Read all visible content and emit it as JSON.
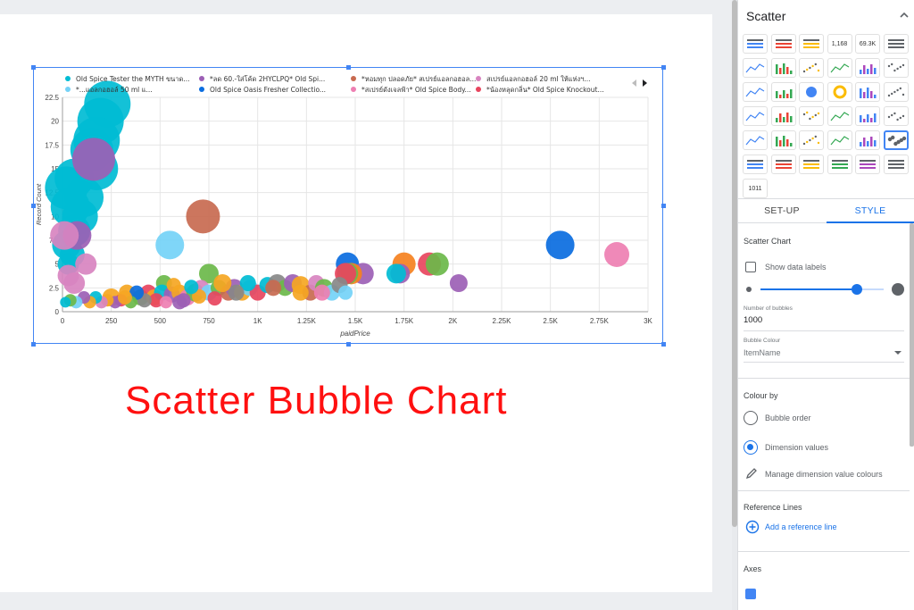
{
  "headline": "Scatter Bubble Chart",
  "panel": {
    "title": "Scatter",
    "chart_types": [
      {
        "icon": "table-icon"
      },
      {
        "icon": "table-bars-icon"
      },
      {
        "icon": "table-heatmap-icon"
      },
      {
        "icon": "scorecard-icon",
        "label": "1,168"
      },
      {
        "icon": "scorecard-compact-icon",
        "label": "69.3K"
      },
      {
        "icon": "time-series-icon"
      },
      {
        "icon": "sparkline-icon"
      },
      {
        "icon": "smoothed-line-icon"
      },
      {
        "icon": "column-chart-icon"
      },
      {
        "icon": "stacked-column-icon"
      },
      {
        "icon": "100-stacked-column-icon"
      },
      {
        "icon": "bar-chart-icon"
      },
      {
        "icon": "stacked-bar-icon"
      },
      {
        "icon": "100-stacked-bar-icon"
      },
      {
        "icon": "pie-chart-icon"
      },
      {
        "icon": "donut-chart-icon"
      },
      {
        "icon": "geo-map-icon"
      },
      {
        "icon": "google-maps-icon"
      },
      {
        "icon": "filled-map-icon"
      },
      {
        "icon": "line-map-icon"
      },
      {
        "icon": "heat-map-icon"
      },
      {
        "icon": "combo-column-icon"
      },
      {
        "icon": "combo-stacked-icon"
      },
      {
        "icon": "line-chart-icon"
      },
      {
        "icon": "smooth-line-chart-icon"
      },
      {
        "icon": "area-chart-icon"
      },
      {
        "icon": "stacked-area-icon"
      },
      {
        "icon": "100-area-icon"
      },
      {
        "icon": "scatter-chart-icon"
      },
      {
        "icon": "bubble-chart-icon",
        "selected": true
      },
      {
        "icon": "pivot-table-icon"
      },
      {
        "icon": "pivot-bars-icon"
      },
      {
        "icon": "pivot-heatmap-icon"
      },
      {
        "icon": "bullet-chart-icon"
      },
      {
        "icon": "treemap-icon"
      },
      {
        "icon": "gauge-icon"
      },
      {
        "icon": "gauge-value-icon",
        "label": "1011"
      }
    ],
    "tabs": [
      "SET-UP",
      "STYLE"
    ],
    "active_tab": "STYLE",
    "style": {
      "section_title": "Scatter Chart",
      "show_labels": "Show data labels",
      "num_bubbles_label": "Number of bubbles",
      "num_bubbles_value": "1000",
      "bubble_colour_label": "Bubble Colour",
      "bubble_colour_value": "ItemName",
      "slider_fraction": 0.78,
      "colour_by_title": "Colour by",
      "option_bubble_order": "Bubble order",
      "option_dimension": "Dimension values",
      "selected_option": "Dimension values",
      "manage_colours": "Manage dimension value colours",
      "reference_lines_title": "Reference Lines",
      "add_reference_line": "Add a reference line",
      "axes_title": "Axes"
    }
  },
  "chart_data": {
    "type": "scatter",
    "xlabel": "paidPrice",
    "ylabel": "Record Count",
    "xlim": [
      0,
      3000
    ],
    "ylim": [
      0,
      22.5
    ],
    "x_ticks": [
      "0",
      "250",
      "500",
      "750",
      "1K",
      "1.25K",
      "1.5K",
      "1.75K",
      "2K",
      "2.25K",
      "2.5K",
      "2.75K",
      "3K"
    ],
    "y_ticks": [
      "0",
      "2.5",
      "5",
      "7.5",
      "10",
      "12.5",
      "15",
      "17.5",
      "20",
      "22.5"
    ],
    "grid": true,
    "legend_position": "top",
    "legend": [
      {
        "name": "Old Spice Tester the MYTH ขนาด...",
        "color": "#00bcd4"
      },
      {
        "name": "*ลด 60.-ใส่โค้ด 2HYCLPQ* Old Spi...",
        "color": "#9c5fb5"
      },
      {
        "name": "*หอมทุก ปลอดภัย* สเปรย์แอลกอฮอล...",
        "color": "#c86a50"
      },
      {
        "name": "สเปรย์แอลกอฮอล์ 20 ml ให้แห่งฯ...",
        "color": "#d884c0"
      },
      {
        "name": "*...แอลกอฮอล์ 50 ml แ...",
        "color": "#74d2f7"
      },
      {
        "name": "Old Spice Oasis Fresher Collectio...",
        "color": "#0a6de0"
      },
      {
        "name": "*สเปรย์ดังเจลฟ้า* Old Spice Body...",
        "color": "#ee7fb2"
      },
      {
        "name": "*น้องหลุดกลิ่น* Old Spice Knockout...",
        "color": "#e8455e"
      }
    ],
    "points": [
      {
        "x": 230,
        "y": 21.8,
        "r": 26,
        "c": "#00bcd4"
      },
      {
        "x": 195,
        "y": 20,
        "r": 26,
        "c": "#00bcd4"
      },
      {
        "x": 175,
        "y": 18,
        "r": 26,
        "c": "#00bcd4"
      },
      {
        "x": 150,
        "y": 17,
        "r": 24,
        "c": "#00bcd4"
      },
      {
        "x": 175,
        "y": 15,
        "r": 24,
        "c": "#00bcd4"
      },
      {
        "x": 60,
        "y": 14,
        "r": 22,
        "c": "#00bcd4"
      },
      {
        "x": 20,
        "y": 13,
        "r": 24,
        "c": "#00bcd4"
      },
      {
        "x": 110,
        "y": 12,
        "r": 22,
        "c": "#00bcd4"
      },
      {
        "x": 40,
        "y": 11,
        "r": 22,
        "c": "#00bcd4"
      },
      {
        "x": 90,
        "y": 10,
        "r": 20,
        "c": "#00bcd4"
      },
      {
        "x": 60,
        "y": 8.5,
        "r": 18,
        "c": "#00bcd4"
      },
      {
        "x": 20,
        "y": 7,
        "r": 16,
        "c": "#00bcd4"
      },
      {
        "x": 50,
        "y": 6,
        "r": 14,
        "c": "#00bcd4"
      },
      {
        "x": 30,
        "y": 5,
        "r": 12,
        "c": "#00bcd4"
      },
      {
        "x": 160,
        "y": 16,
        "r": 24,
        "c": "#9c5fb5"
      },
      {
        "x": 75,
        "y": 8,
        "r": 16,
        "c": "#9c5fb5"
      },
      {
        "x": 10,
        "y": 8,
        "r": 16,
        "c": "#d884c0"
      },
      {
        "x": 120,
        "y": 5,
        "r": 12,
        "c": "#d884c0"
      },
      {
        "x": 30,
        "y": 3.8,
        "r": 12,
        "c": "#d884c0"
      },
      {
        "x": 60,
        "y": 3,
        "r": 12,
        "c": "#d884c0"
      },
      {
        "x": 720,
        "y": 10,
        "r": 19,
        "c": "#c86a50"
      },
      {
        "x": 550,
        "y": 7,
        "r": 16,
        "c": "#74d2f7"
      },
      {
        "x": 2550,
        "y": 7,
        "r": 16,
        "c": "#0a6de0"
      },
      {
        "x": 2840,
        "y": 6,
        "r": 14,
        "c": "#ee7fb2"
      },
      {
        "x": 1460,
        "y": 5,
        "r": 13,
        "c": "#0a6de0"
      },
      {
        "x": 1750,
        "y": 5,
        "r": 13,
        "c": "#f5811f"
      },
      {
        "x": 1880,
        "y": 5,
        "r": 13,
        "c": "#e8455e"
      },
      {
        "x": 1920,
        "y": 5,
        "r": 13,
        "c": "#6bb84a"
      },
      {
        "x": 1730,
        "y": 4,
        "r": 11,
        "c": "#9c5fb5"
      },
      {
        "x": 1710,
        "y": 4,
        "r": 11,
        "c": "#00bcd4"
      },
      {
        "x": 1540,
        "y": 4,
        "r": 12,
        "c": "#9c5fb5"
      },
      {
        "x": 1480,
        "y": 4,
        "r": 12,
        "c": "#f5811f"
      },
      {
        "x": 1460,
        "y": 4,
        "r": 12,
        "c": "#6bb84a"
      },
      {
        "x": 1450,
        "y": 4,
        "r": 12,
        "c": "#e8455e"
      },
      {
        "x": 2030,
        "y": 3,
        "r": 10,
        "c": "#9c5fb5"
      },
      {
        "x": 750,
        "y": 4,
        "r": 11,
        "c": "#6bb84a"
      },
      {
        "x": 520,
        "y": 3,
        "r": 9,
        "c": "#6bb84a"
      },
      {
        "x": 250,
        "y": 1.5,
        "r": 10,
        "c": "#f5a623"
      },
      {
        "x": 330,
        "y": 2,
        "r": 9,
        "c": "#f5a623"
      },
      {
        "x": 400,
        "y": 1.5,
        "r": 9,
        "c": "#6bb84a"
      },
      {
        "x": 440,
        "y": 2,
        "r": 9,
        "c": "#e8455e"
      },
      {
        "x": 470,
        "y": 1.5,
        "r": 9,
        "c": "#f5a623"
      },
      {
        "x": 510,
        "y": 2,
        "r": 9,
        "c": "#00bcd4"
      },
      {
        "x": 560,
        "y": 1.8,
        "r": 9,
        "c": "#9c5fb5"
      },
      {
        "x": 600,
        "y": 2,
        "r": 9,
        "c": "#f5a623"
      },
      {
        "x": 640,
        "y": 1.5,
        "r": 9,
        "c": "#ee7fb2"
      },
      {
        "x": 680,
        "y": 2,
        "r": 10,
        "c": "#6bb84a"
      },
      {
        "x": 710,
        "y": 2.5,
        "r": 9,
        "c": "#d884c0"
      },
      {
        "x": 750,
        "y": 2,
        "r": 9,
        "c": "#74d2f7"
      },
      {
        "x": 800,
        "y": 2.5,
        "r": 9,
        "c": "#6bb84a"
      },
      {
        "x": 850,
        "y": 2,
        "r": 9,
        "c": "#c86a50"
      },
      {
        "x": 880,
        "y": 2.5,
        "r": 10,
        "c": "#9c5fb5"
      },
      {
        "x": 920,
        "y": 2,
        "r": 9,
        "c": "#f5a623"
      },
      {
        "x": 960,
        "y": 2.5,
        "r": 9,
        "c": "#74d2f7"
      },
      {
        "x": 1000,
        "y": 2,
        "r": 9,
        "c": "#e8455e"
      },
      {
        "x": 1050,
        "y": 2.8,
        "r": 9,
        "c": "#00bcd4"
      },
      {
        "x": 1100,
        "y": 3,
        "r": 10,
        "c": "#888888"
      },
      {
        "x": 1140,
        "y": 2.5,
        "r": 9,
        "c": "#6bb84a"
      },
      {
        "x": 1180,
        "y": 3,
        "r": 10,
        "c": "#9c5fb5"
      },
      {
        "x": 1220,
        "y": 2.8,
        "r": 10,
        "c": "#f5a623"
      },
      {
        "x": 1270,
        "y": 2,
        "r": 9,
        "c": "#c86a50"
      },
      {
        "x": 1300,
        "y": 3,
        "r": 9,
        "c": "#d884c0"
      },
      {
        "x": 1340,
        "y": 2.5,
        "r": 10,
        "c": "#6bb84a"
      },
      {
        "x": 1380,
        "y": 2,
        "r": 9,
        "c": "#74d2f7"
      },
      {
        "x": 1420,
        "y": 2.8,
        "r": 9,
        "c": "#888888"
      },
      {
        "x": 1450,
        "y": 2,
        "r": 8,
        "c": "#74d2f7"
      },
      {
        "x": 1330,
        "y": 2,
        "r": 9,
        "c": "#ee7fb2"
      },
      {
        "x": 1220,
        "y": 2,
        "r": 9,
        "c": "#f5a623"
      },
      {
        "x": 1080,
        "y": 2.5,
        "r": 9,
        "c": "#c86a50"
      },
      {
        "x": 950,
        "y": 3,
        "r": 9,
        "c": "#00bcd4"
      },
      {
        "x": 890,
        "y": 2,
        "r": 9,
        "c": "#888888"
      },
      {
        "x": 820,
        "y": 3,
        "r": 10,
        "c": "#f5a623"
      },
      {
        "x": 700,
        "y": 1.6,
        "r": 8,
        "c": "#f5a623"
      },
      {
        "x": 660,
        "y": 2.6,
        "r": 8,
        "c": "#00bcd4"
      },
      {
        "x": 620,
        "y": 1.2,
        "r": 8,
        "c": "#9c5fb5"
      },
      {
        "x": 570,
        "y": 2.8,
        "r": 8,
        "c": "#f5a623"
      },
      {
        "x": 480,
        "y": 1.2,
        "r": 8,
        "c": "#e8455e"
      },
      {
        "x": 420,
        "y": 1.2,
        "r": 8,
        "c": "#888888"
      },
      {
        "x": 380,
        "y": 2,
        "r": 8,
        "c": "#0a6de0"
      },
      {
        "x": 350,
        "y": 1,
        "r": 7,
        "c": "#6bb84a"
      },
      {
        "x": 300,
        "y": 1.2,
        "r": 7,
        "c": "#e8455e"
      },
      {
        "x": 270,
        "y": 1,
        "r": 7,
        "c": "#9c5fb5"
      },
      {
        "x": 230,
        "y": 1.2,
        "r": 7,
        "c": "#f5a623"
      },
      {
        "x": 200,
        "y": 1,
        "r": 7,
        "c": "#d884c0"
      },
      {
        "x": 170,
        "y": 1.5,
        "r": 7,
        "c": "#00bcd4"
      },
      {
        "x": 140,
        "y": 1,
        "r": 7,
        "c": "#f5a623"
      },
      {
        "x": 110,
        "y": 1.5,
        "r": 7,
        "c": "#9c5fb5"
      },
      {
        "x": 70,
        "y": 1,
        "r": 7,
        "c": "#74d2f7"
      },
      {
        "x": 40,
        "y": 1.2,
        "r": 7,
        "c": "#6bb84a"
      },
      {
        "x": 15,
        "y": 1,
        "r": 6,
        "c": "#00bcd4"
      },
      {
        "x": 320,
        "y": 1.5,
        "r": 8,
        "c": "#f5a623"
      },
      {
        "x": 600,
        "y": 1,
        "r": 8,
        "c": "#9c5fb5"
      },
      {
        "x": 780,
        "y": 1.4,
        "r": 8,
        "c": "#e8455e"
      },
      {
        "x": 530,
        "y": 1,
        "r": 7,
        "c": "#ee7fb2"
      }
    ]
  }
}
